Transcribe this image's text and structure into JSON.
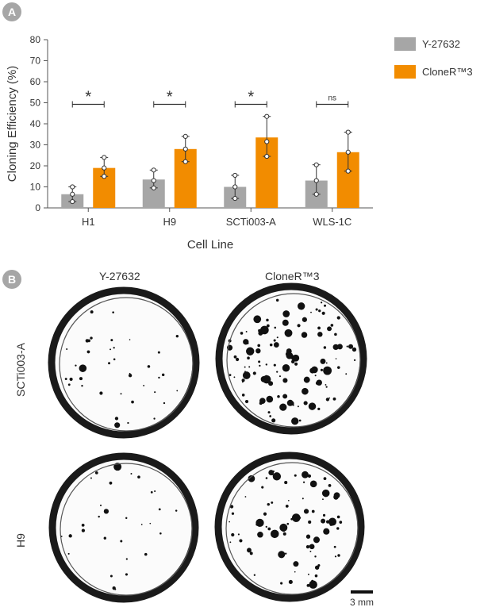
{
  "panels": {
    "a": "A",
    "b": "B"
  },
  "chart_data": {
    "type": "bar",
    "categories": [
      "H1",
      "H9",
      "SCTi003-A",
      "WLS-1C"
    ],
    "series": [
      {
        "name": "Y-27632",
        "color": "#a6a6a6",
        "values": [
          6.5,
          13.5,
          10,
          13
        ],
        "error": [
          [
            3,
            10
          ],
          [
            9.5,
            18
          ],
          [
            4.5,
            15.5
          ],
          [
            6.5,
            20.5
          ]
        ],
        "points": [
          [
            3,
            6.5,
            10
          ],
          [
            9.5,
            13,
            18
          ],
          [
            4.5,
            10,
            15.5
          ],
          [
            6.5,
            13,
            20.5
          ]
        ]
      },
      {
        "name": "CloneR™3",
        "color": "#f28c00",
        "values": [
          19,
          28,
          33.5,
          26.5
        ],
        "error": [
          [
            15,
            24
          ],
          [
            22,
            34
          ],
          [
            24.5,
            43.5
          ],
          [
            17.5,
            36
          ]
        ],
        "points": [
          [
            15,
            19,
            24
          ],
          [
            22,
            28,
            34
          ],
          [
            24.5,
            31.5,
            43.5
          ],
          [
            17.5,
            26.5,
            36
          ]
        ]
      }
    ],
    "xlabel": "Cell Line",
    "ylabel": "Cloning Efficiency (%)",
    "ylim": [
      0,
      80
    ],
    "yticks": [
      0,
      10,
      20,
      30,
      40,
      50,
      60,
      70,
      80
    ],
    "significance": [
      {
        "label": "*",
        "y": 50
      },
      {
        "label": "*",
        "y": 50
      },
      {
        "label": "*",
        "y": 50
      },
      {
        "label": "ns",
        "y": 50
      }
    ],
    "legend_position": "top-right",
    "grid": false
  },
  "images": {
    "columns": [
      "Y-27632",
      "CloneR™3"
    ],
    "rows": [
      "SCTi003-A",
      "H9"
    ],
    "scale_bar": "3 mm"
  }
}
